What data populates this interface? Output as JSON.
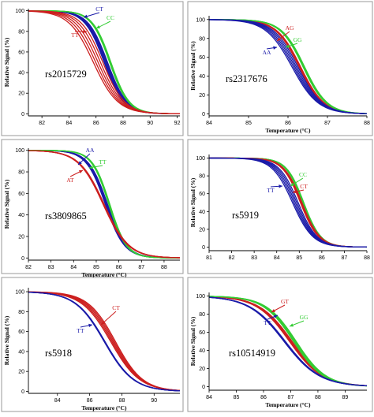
{
  "chart_data": [
    {
      "type": "line",
      "title": "rs2015729",
      "xlabel": "",
      "ylabel": "Relative Signal (%)",
      "xticks": [
        "82",
        "84",
        "86",
        "88",
        "90",
        "92"
      ],
      "yticks": [
        "0",
        "20",
        "40",
        "60",
        "80",
        "100"
      ],
      "xlim": [
        81.0,
        92.2
      ],
      "ylim": [
        -2,
        102
      ],
      "series": [
        {
          "name": "CT",
          "color": "#1a1aa8",
          "bands": [
            [
              86.6,
              0.72
            ],
            [
              86.85,
              0.72
            ]
          ]
        },
        {
          "name": "CC",
          "color": "#33cc33",
          "bands": [
            [
              87.0,
              0.68
            ],
            [
              87.1,
              0.68
            ]
          ]
        },
        {
          "name": "TT",
          "color": "#cc1f1f",
          "bands": [
            [
              85.8,
              0.9
            ],
            [
              86.5,
              0.8
            ]
          ]
        }
      ]
    },
    {
      "type": "line",
      "title": "rs2317676",
      "xlabel": "Temperature (°C)",
      "ylabel": "Relative Signal (%)",
      "xticks": [
        "84",
        "85",
        "86",
        "87",
        "88"
      ],
      "yticks": [
        "0",
        "20",
        "40",
        "60",
        "80",
        "100"
      ],
      "xlim": [
        84,
        88
      ],
      "ylim": [
        -2,
        104
      ],
      "series": [
        {
          "name": "AG",
          "color": "#cc1f1f",
          "bands": [
            [
              86.28,
              0.3
            ],
            [
              86.32,
              0.3
            ]
          ]
        },
        {
          "name": "GG",
          "color": "#33cc33",
          "bands": [
            [
              86.38,
              0.29
            ],
            [
              86.42,
              0.29
            ]
          ]
        },
        {
          "name": "AA",
          "color": "#1a1aa8",
          "bands": [
            [
              86.1,
              0.33
            ],
            [
              86.25,
              0.31
            ]
          ]
        }
      ]
    },
    {
      "type": "line",
      "title": "rs3809865",
      "xlabel": "Temperature (°C)",
      "ylabel": "Relative Signal (%)",
      "xticks": [
        "82",
        "83",
        "84",
        "85",
        "86",
        "87",
        "88"
      ],
      "yticks": [
        "0",
        "20",
        "40",
        "60",
        "80",
        "100"
      ],
      "xlim": [
        82,
        88.7
      ],
      "ylim": [
        -2,
        102
      ],
      "series": [
        {
          "name": "AA",
          "color": "#1a1aa8",
          "bands": [
            [
              85.4,
              0.42
            ],
            [
              85.5,
              0.42
            ]
          ]
        },
        {
          "name": "TT",
          "color": "#33cc33",
          "bands": [
            [
              85.55,
              0.38
            ],
            [
              85.6,
              0.38
            ]
          ]
        },
        {
          "name": "AT",
          "color": "#cc1f1f",
          "bands": [
            [
              85.3,
              0.55
            ],
            [
              85.35,
              0.55
            ]
          ]
        }
      ]
    },
    {
      "type": "line",
      "title": "rs5919",
      "xlabel": "",
      "ylabel": "Relative Signal (%)",
      "xticks": [
        "81",
        "82",
        "83",
        "84",
        "85",
        "86",
        "87",
        "88"
      ],
      "yticks": [
        "0",
        "20",
        "40",
        "60",
        "80",
        "100"
      ],
      "xlim": [
        81,
        88
      ],
      "ylim": [
        -4,
        104
      ],
      "series": [
        {
          "name": "CC",
          "color": "#33cc33",
          "bands": [
            [
              85.15,
              0.38
            ],
            [
              85.2,
              0.38
            ]
          ]
        },
        {
          "name": "CT",
          "color": "#cc1f1f",
          "bands": [
            [
              85.05,
              0.4
            ],
            [
              85.12,
              0.4
            ]
          ]
        },
        {
          "name": "TT",
          "color": "#1a1aa8",
          "bands": [
            [
              84.7,
              0.45
            ],
            [
              84.95,
              0.42
            ]
          ]
        }
      ]
    },
    {
      "type": "line",
      "title": "rs5918",
      "xlabel": "Temperature (°C)",
      "ylabel": "Relative Signal (%)",
      "xticks": [
        "84",
        "86",
        "88",
        "90"
      ],
      "yticks": [
        "0",
        "20",
        "40",
        "60",
        "80",
        "100"
      ],
      "xlim": [
        82.2,
        91.6
      ],
      "ylim": [
        -2,
        104
      ],
      "series": [
        {
          "name": "CT",
          "color": "#cc1f1f",
          "bands": [
            [
              87.3,
              0.9
            ],
            [
              87.6,
              0.85
            ]
          ]
        },
        {
          "name": "TT",
          "color": "#1a1aa8",
          "bands": [
            [
              86.9,
              0.9
            ],
            [
              86.95,
              0.9
            ]
          ]
        }
      ]
    },
    {
      "type": "line",
      "title": "rs10514919",
      "xlabel": "Temperature (°C)",
      "ylabel": "Relative Signal (%)",
      "xticks": [
        "84",
        "85",
        "86",
        "87",
        "88",
        "89"
      ],
      "yticks": [
        "0",
        "20",
        "40",
        "60",
        "80",
        "100"
      ],
      "xlim": [
        84,
        89.8
      ],
      "ylim": [
        -4,
        104
      ],
      "series": [
        {
          "name": "GT",
          "color": "#cc1f1f",
          "bands": [
            [
              86.95,
              0.6
            ],
            [
              87.05,
              0.6
            ]
          ]
        },
        {
          "name": "GG",
          "color": "#33cc33",
          "bands": [
            [
              87.1,
              0.55
            ],
            [
              87.2,
              0.55
            ]
          ]
        },
        {
          "name": "TT",
          "color": "#1a1aa8",
          "bands": [
            [
              86.75,
              0.65
            ],
            [
              86.8,
              0.65
            ]
          ]
        }
      ]
    }
  ]
}
